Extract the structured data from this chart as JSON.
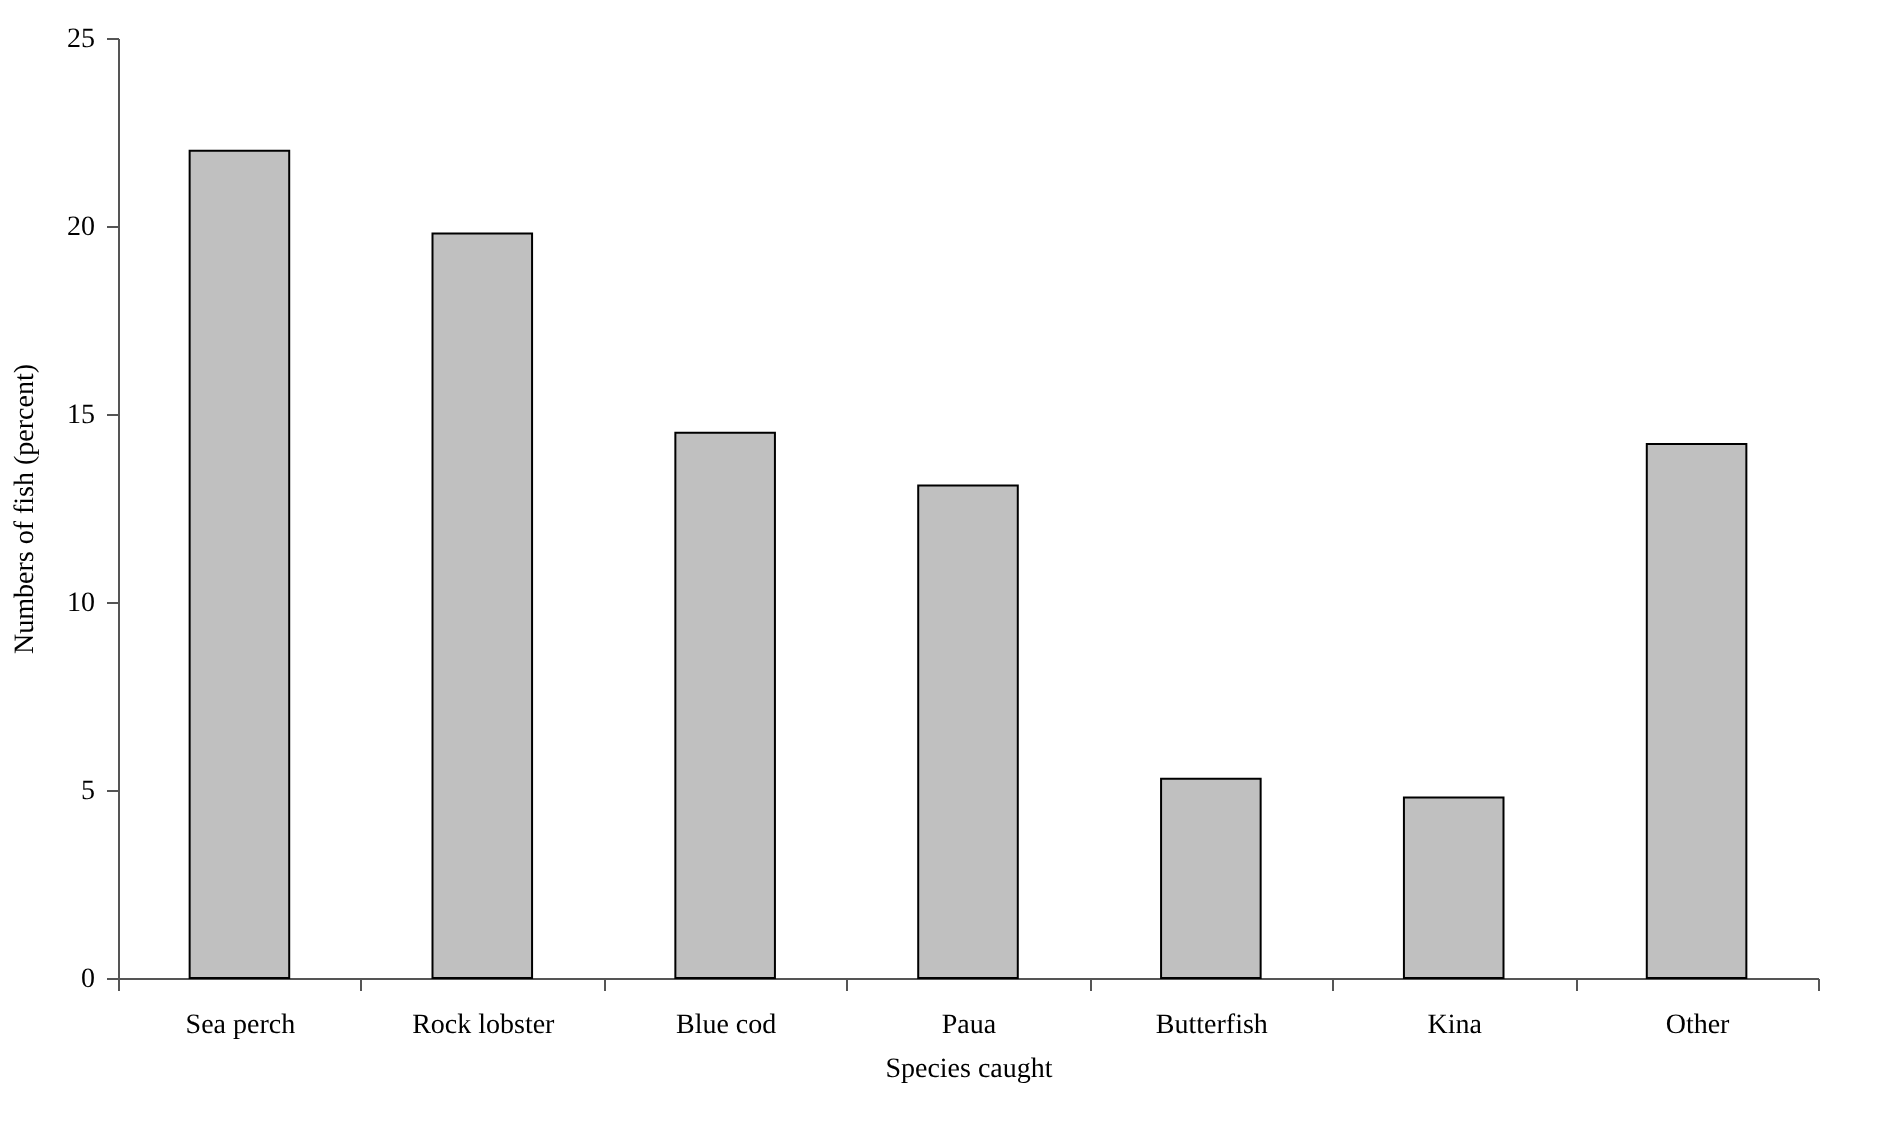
{
  "chart_data": {
    "type": "bar",
    "xlabel": "Species caught",
    "ylabel": "Numbers of fish (percent)",
    "categories": [
      "Sea perch",
      "Rock  lobster",
      "Blue cod",
      "Paua",
      "Butterfish",
      "Kina",
      "Other"
    ],
    "values": [
      22.0,
      19.8,
      14.5,
      13.1,
      5.3,
      4.8,
      14.2
    ],
    "color": "#c0c0c0",
    "ylim": [
      0,
      25
    ],
    "yticks": [
      0,
      5,
      10,
      15,
      20,
      25
    ],
    "grid": false
  }
}
